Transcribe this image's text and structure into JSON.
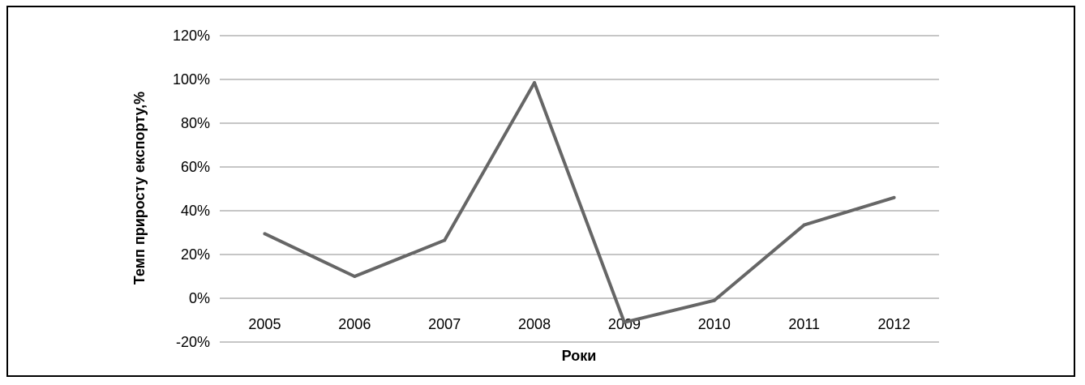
{
  "chart_data": {
    "type": "line",
    "title": "",
    "xlabel": "Роки",
    "ylabel": "Темп приросту експорту,%",
    "categories": [
      "2005",
      "2006",
      "2007",
      "2008",
      "2009",
      "2010",
      "2011",
      "2012"
    ],
    "series": [
      {
        "values": [
          29.5,
          10,
          26.5,
          98.5,
          -11,
          -1,
          33.5,
          46
        ]
      }
    ],
    "ylim": [
      -20,
      120
    ],
    "yticks": [
      -20,
      0,
      20,
      40,
      60,
      80,
      100,
      120
    ],
    "ytick_labels": [
      "-20%",
      "0%",
      "20%",
      "40%",
      "60%",
      "80%",
      "100%",
      "120%"
    ],
    "grid": true,
    "legend": "none",
    "colors": {
      "line": "#666666",
      "grid": "#8c8c8c",
      "frame": "#000000"
    }
  }
}
